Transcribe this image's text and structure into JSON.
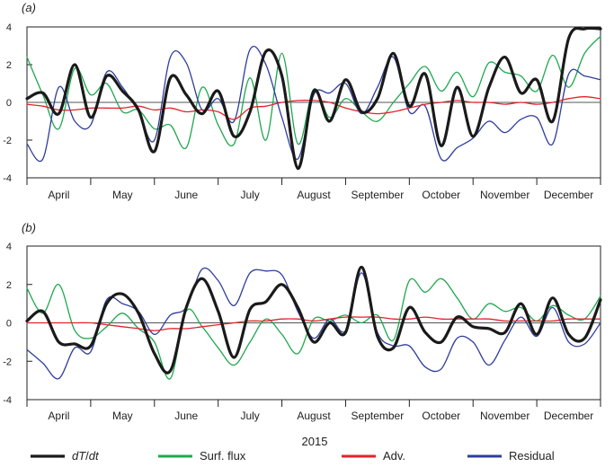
{
  "figure": {
    "xlabel": "2015"
  },
  "colors": {
    "dTdt": "#1a1a1a",
    "surf_flux": "#1fa84f",
    "adv": "#e0242a",
    "residual": "#2e3d9c",
    "zero_line": "#555555",
    "frame": "#222222"
  },
  "legend": [
    {
      "key": "dTdt",
      "label_main": "dT",
      "label_sep": "/",
      "label_den": "dt"
    },
    {
      "key": "surf_flux",
      "label": "Surf. flux"
    },
    {
      "key": "adv",
      "label": "Adv."
    },
    {
      "key": "residual",
      "label": "Residual"
    }
  ],
  "chart_data": [
    {
      "type": "line",
      "panel_label": "(a)",
      "xlabel": "2015",
      "ylabel": "",
      "ylim": [
        -4,
        4
      ],
      "yticks": [
        -4,
        -2,
        0,
        2,
        4
      ],
      "xlim": [
        0,
        9
      ],
      "month_labels": [
        "April",
        "May",
        "June",
        "July",
        "August",
        "September",
        "October",
        "November",
        "December"
      ],
      "x": [
        0.0,
        0.25,
        0.5,
        0.75,
        1.0,
        1.25,
        1.5,
        1.75,
        2.0,
        2.25,
        2.5,
        2.75,
        3.0,
        3.25,
        3.5,
        3.75,
        4.0,
        4.25,
        4.5,
        4.75,
        5.0,
        5.25,
        5.5,
        5.75,
        6.0,
        6.25,
        6.5,
        6.75,
        7.0,
        7.25,
        7.5,
        7.75,
        8.0,
        8.25,
        8.5,
        8.75,
        9.0
      ],
      "series": [
        {
          "key": "dTdt",
          "name": "dT/dt",
          "values": [
            0.2,
            0.5,
            -0.6,
            2.0,
            -0.8,
            1.4,
            0.6,
            -0.4,
            -2.6,
            1.3,
            0.4,
            -0.6,
            0.6,
            -1.8,
            -0.5,
            2.7,
            1.4,
            -3.5,
            0.6,
            -1.0,
            1.2,
            -0.5,
            0.2,
            2.6,
            -0.2,
            1.5,
            -2.3,
            0.8,
            -1.8,
            0.8,
            2.4,
            0.5,
            1.2,
            -1.0,
            3.4,
            3.9,
            3.9
          ]
        },
        {
          "key": "surf_flux",
          "name": "Surf. flux",
          "values": [
            2.4,
            0.4,
            -1.4,
            1.8,
            0.4,
            1.0,
            -0.5,
            -0.4,
            -1.4,
            -1.2,
            -2.4,
            0.8,
            -1.2,
            -2.2,
            1.3,
            -2.0,
            2.6,
            -2.2,
            0.7,
            -0.8,
            0.2,
            -0.5,
            -1.0,
            0.0,
            1.0,
            1.9,
            0.6,
            1.6,
            0.3,
            2.1,
            1.6,
            1.4,
            0.6,
            2.5,
            0.8,
            2.6,
            3.5
          ]
        },
        {
          "key": "adv",
          "name": "Adv.",
          "values": [
            -0.1,
            -0.2,
            -0.4,
            -0.4,
            -0.3,
            -0.3,
            -0.3,
            -0.2,
            -0.4,
            -0.3,
            -0.5,
            -0.4,
            -0.5,
            -0.9,
            -0.3,
            -0.2,
            0.0,
            0.1,
            0.1,
            0.0,
            -0.3,
            -0.5,
            -0.6,
            -0.5,
            -0.3,
            -0.1,
            0.0,
            0.1,
            0.0,
            0.0,
            -0.1,
            0.0,
            -0.1,
            0.0,
            0.2,
            0.3,
            0.2
          ]
        },
        {
          "key": "residual",
          "name": "Residual",
          "values": [
            -2.2,
            -3.0,
            0.8,
            -1.0,
            -1.2,
            1.6,
            0.8,
            -0.5,
            -2.0,
            2.4,
            2.1,
            -0.4,
            0.2,
            -1.0,
            2.8,
            2.0,
            -0.8,
            -3.0,
            0.4,
            0.5,
            1.0,
            -0.6,
            0.8,
            2.4,
            -0.5,
            -0.2,
            -3.0,
            -2.4,
            -1.9,
            -1.0,
            -1.6,
            -0.9,
            -0.8,
            -2.2,
            1.5,
            1.4,
            1.2
          ]
        }
      ]
    },
    {
      "type": "line",
      "panel_label": "(b)",
      "xlabel": "2015",
      "ylabel": "",
      "ylim": [
        -4,
        4
      ],
      "yticks": [
        -4,
        -2,
        0,
        2,
        4
      ],
      "xlim": [
        0,
        9
      ],
      "month_labels": [
        "April",
        "May",
        "June",
        "July",
        "August",
        "September",
        "October",
        "November",
        "December"
      ],
      "x": [
        0.0,
        0.25,
        0.5,
        0.75,
        1.0,
        1.25,
        1.5,
        1.75,
        2.0,
        2.25,
        2.5,
        2.75,
        3.0,
        3.25,
        3.5,
        3.75,
        4.0,
        4.25,
        4.5,
        4.75,
        5.0,
        5.25,
        5.5,
        5.75,
        6.0,
        6.25,
        6.5,
        6.75,
        7.0,
        7.25,
        7.5,
        7.75,
        8.0,
        8.25,
        8.5,
        8.75,
        9.0
      ],
      "series": [
        {
          "key": "dTdt",
          "name": "dT/dt",
          "values": [
            0.1,
            0.6,
            -1.0,
            -1.1,
            -1.2,
            1.0,
            1.5,
            0.5,
            -1.6,
            -2.5,
            0.8,
            2.3,
            0.6,
            -1.8,
            0.7,
            1.1,
            2.0,
            0.8,
            -1.0,
            0.0,
            -0.5,
            2.9,
            -0.7,
            -1.3,
            0.8,
            -0.5,
            -1.0,
            0.3,
            -0.2,
            -0.3,
            -0.5,
            1.0,
            -0.6,
            1.3,
            -0.6,
            -0.8,
            1.2
          ]
        },
        {
          "key": "surf_flux",
          "name": "Surf. flux",
          "values": [
            1.8,
            0.5,
            2.0,
            -0.4,
            -0.8,
            -0.2,
            0.5,
            -0.3,
            -1.0,
            -2.9,
            0.6,
            -0.2,
            -1.3,
            -2.2,
            -1.0,
            0.2,
            -0.6,
            -1.6,
            0.2,
            0.1,
            0.4,
            0.0,
            0.4,
            -0.9,
            2.2,
            1.6,
            2.3,
            1.3,
            0.2,
            1.0,
            0.6,
            0.8,
            0.1,
            0.9,
            0.4,
            0.2,
            1.4
          ]
        },
        {
          "key": "adv",
          "name": "Adv.",
          "values": [
            0.0,
            0.0,
            0.0,
            0.0,
            0.0,
            -0.1,
            -0.2,
            -0.3,
            -0.4,
            -0.3,
            -0.3,
            -0.2,
            -0.1,
            0.0,
            0.1,
            0.1,
            0.2,
            0.2,
            0.1,
            0.2,
            0.3,
            0.3,
            0.3,
            0.2,
            0.2,
            0.3,
            0.2,
            0.2,
            0.2,
            0.2,
            0.1,
            0.1,
            0.1,
            0.1,
            0.2,
            0.2,
            0.2
          ]
        },
        {
          "key": "residual",
          "name": "Residual",
          "values": [
            -1.4,
            -2.1,
            -2.9,
            -1.3,
            -1.5,
            1.2,
            1.0,
            0.6,
            -0.6,
            0.4,
            0.8,
            2.8,
            2.2,
            0.9,
            2.6,
            2.7,
            2.5,
            0.6,
            -0.8,
            0.2,
            -0.4,
            2.6,
            -0.5,
            -1.2,
            -1.2,
            -2.3,
            -2.4,
            -0.8,
            -1.0,
            -2.2,
            -0.9,
            0.3,
            -0.7,
            0.8,
            -1.0,
            -1.1,
            0.0
          ]
        }
      ]
    }
  ]
}
